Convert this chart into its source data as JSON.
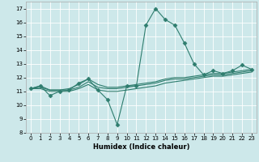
{
  "title": "",
  "xlabel": "Humidex (Indice chaleur)",
  "ylabel": "",
  "bg_color": "#cde8ea",
  "grid_color": "#ffffff",
  "line_color": "#2e7d6e",
  "xlim": [
    -0.5,
    23.5
  ],
  "ylim": [
    8,
    17.5
  ],
  "yticks": [
    8,
    9,
    10,
    11,
    12,
    13,
    14,
    15,
    16,
    17
  ],
  "xticks": [
    0,
    1,
    2,
    3,
    4,
    5,
    6,
    7,
    8,
    9,
    10,
    11,
    12,
    13,
    14,
    15,
    16,
    17,
    18,
    19,
    20,
    21,
    22,
    23
  ],
  "series": [
    {
      "x": [
        0,
        1,
        2,
        3,
        4,
        5,
        6,
        7,
        8,
        9,
        10,
        11,
        12,
        13,
        14,
        15,
        16,
        17,
        18,
        19,
        20,
        21,
        22,
        23
      ],
      "y": [
        11.2,
        11.4,
        10.7,
        11.0,
        11.1,
        11.6,
        11.9,
        11.1,
        10.4,
        8.6,
        11.4,
        11.4,
        15.8,
        17.0,
        16.2,
        15.8,
        14.5,
        13.0,
        12.2,
        12.5,
        12.3,
        12.5,
        12.9,
        12.6
      ],
      "marker": "D",
      "markersize": 2.5,
      "lw": 0.8
    },
    {
      "x": [
        0,
        1,
        2,
        3,
        4,
        5,
        6,
        7,
        8,
        9,
        10,
        11,
        12,
        13,
        14,
        15,
        16,
        17,
        18,
        19,
        20,
        21,
        22,
        23
      ],
      "y": [
        11.2,
        11.4,
        11.1,
        11.1,
        11.2,
        11.5,
        11.9,
        11.5,
        11.3,
        11.3,
        11.4,
        11.5,
        11.6,
        11.7,
        11.9,
        12.0,
        12.0,
        12.1,
        12.2,
        12.3,
        12.3,
        12.4,
        12.5,
        12.6
      ],
      "marker": null,
      "markersize": 0,
      "lw": 0.8
    },
    {
      "x": [
        0,
        1,
        2,
        3,
        4,
        5,
        6,
        7,
        8,
        9,
        10,
        11,
        12,
        13,
        14,
        15,
        16,
        17,
        18,
        19,
        20,
        21,
        22,
        23
      ],
      "y": [
        11.2,
        11.3,
        11.1,
        11.1,
        11.1,
        11.3,
        11.7,
        11.3,
        11.2,
        11.2,
        11.3,
        11.4,
        11.5,
        11.6,
        11.8,
        11.9,
        11.9,
        12.0,
        12.1,
        12.2,
        12.2,
        12.3,
        12.4,
        12.5
      ],
      "marker": null,
      "markersize": 0,
      "lw": 0.8
    },
    {
      "x": [
        0,
        1,
        2,
        3,
        4,
        5,
        6,
        7,
        8,
        9,
        10,
        11,
        12,
        13,
        14,
        15,
        16,
        17,
        18,
        19,
        20,
        21,
        22,
        23
      ],
      "y": [
        11.2,
        11.2,
        11.0,
        11.0,
        11.0,
        11.2,
        11.5,
        11.1,
        11.0,
        11.0,
        11.1,
        11.2,
        11.3,
        11.4,
        11.6,
        11.7,
        11.8,
        11.9,
        12.0,
        12.1,
        12.1,
        12.2,
        12.3,
        12.4
      ],
      "marker": null,
      "markersize": 0,
      "lw": 0.8
    }
  ],
  "tick_fontsize": 5,
  "xlabel_fontsize": 6,
  "xlabel_fontweight": "bold"
}
